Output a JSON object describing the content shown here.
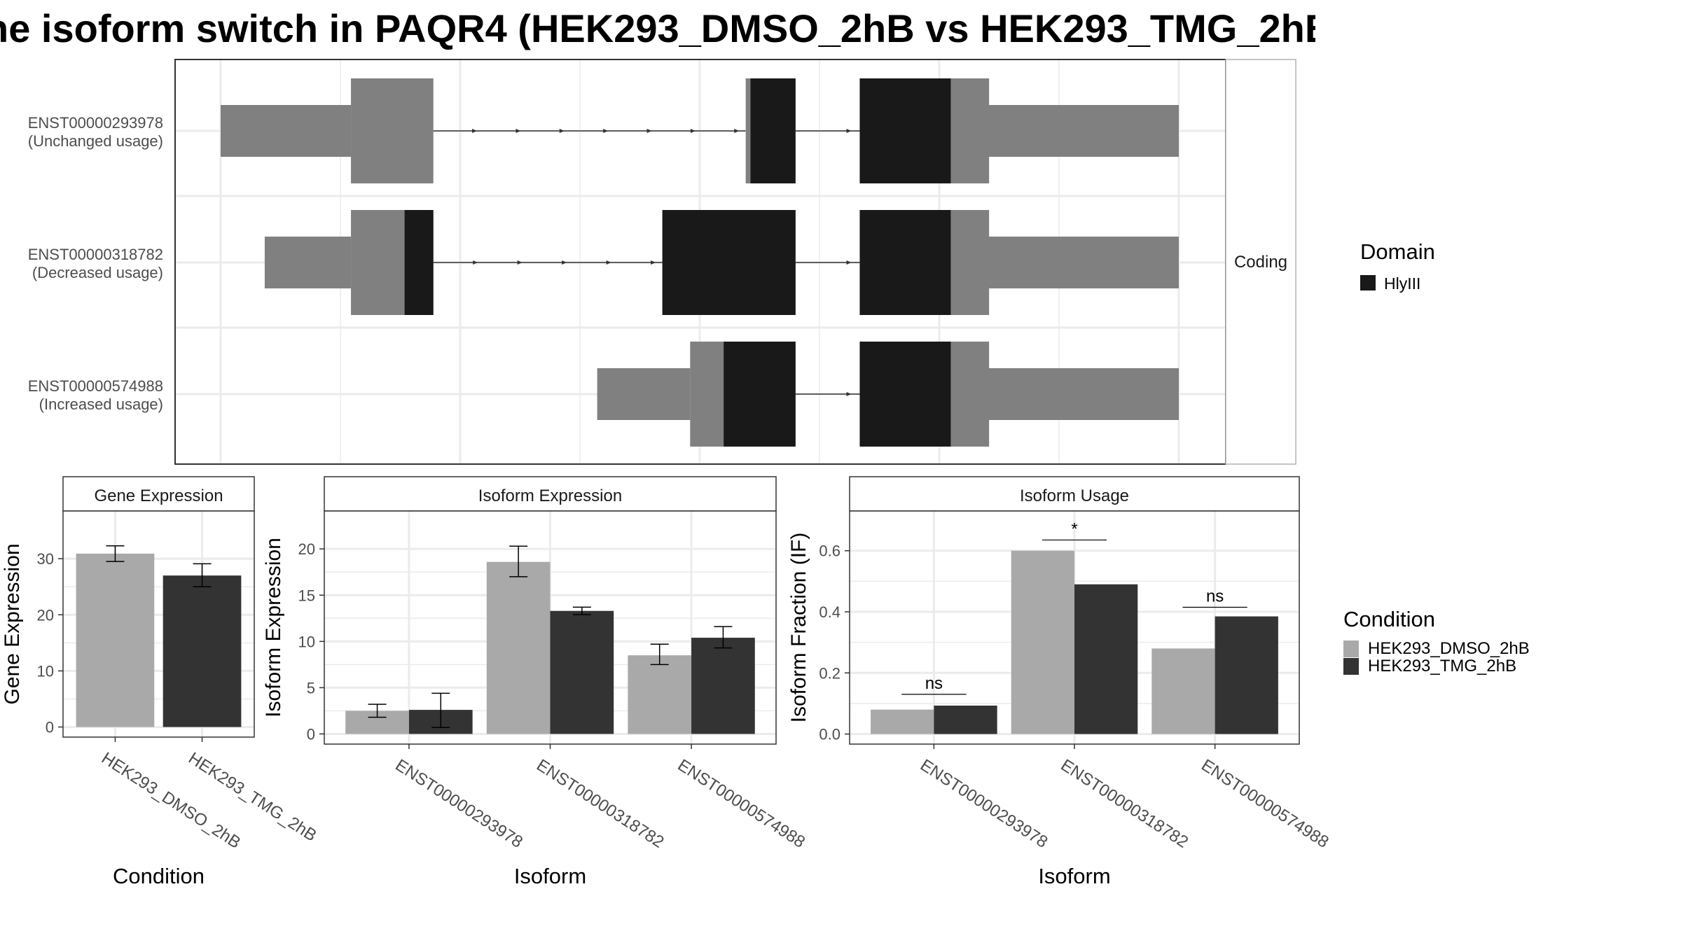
{
  "title": "he isoform switch in PAQR4 (HEK293_DMSO_2hB vs HEK293_TMG_2hB",
  "colors": {
    "dmso": "#A9A9A9",
    "tmg": "#333333",
    "exon_noncoding": "#808080",
    "domain_hlyiii": "#191919",
    "panel_border": "#333333",
    "strip_border": "#B3B3B3",
    "grid": "#EBEBEB"
  },
  "transcript_panel": {
    "facet_label": "Coding",
    "legend_title": "Domain",
    "legend_items": [
      {
        "label": "HlyIII",
        "color": "#191919"
      }
    ],
    "genomic_range": [
      0,
      1000
    ],
    "transcripts": [
      {
        "id": "ENST00000293978",
        "usage_label": "(Unchanged usage)",
        "noncoding": [
          [
            0,
            136
          ],
          [
            762,
            1000
          ]
        ],
        "coding": [
          [
            136,
            222
          ],
          [
            548,
            600
          ],
          [
            667,
            802
          ]
        ],
        "domain": [
          [
            553,
            600
          ],
          [
            667,
            762
          ]
        ],
        "introns": [
          [
            222,
            548
          ],
          [
            600,
            667
          ]
        ]
      },
      {
        "id": "ENST00000318782",
        "usage_label": "(Decreased usage)",
        "noncoding": [
          [
            46,
            136
          ],
          [
            762,
            1000
          ]
        ],
        "coding": [
          [
            136,
            222
          ],
          [
            461,
            600
          ],
          [
            667,
            802
          ]
        ],
        "domain": [
          [
            192,
            222
          ],
          [
            461,
            600
          ],
          [
            667,
            762
          ]
        ],
        "introns": [
          [
            222,
            461
          ],
          [
            600,
            667
          ]
        ]
      },
      {
        "id": "ENST00000574988",
        "usage_label": "(Increased usage)",
        "noncoding": [
          [
            393,
            490
          ],
          [
            762,
            1000
          ]
        ],
        "coding": [
          [
            490,
            600
          ],
          [
            667,
            802
          ]
        ],
        "domain": [
          [
            525,
            600
          ],
          [
            667,
            762
          ]
        ],
        "introns": [
          [
            600,
            667
          ]
        ]
      }
    ]
  },
  "chart_data": [
    {
      "type": "bar",
      "title": "Gene Expression",
      "xlabel": "Condition",
      "ylabel": "Gene Expression",
      "ylim": [
        -1.8,
        38.5
      ],
      "yticks": [
        0,
        10,
        20,
        30
      ],
      "categories": [
        "HEK293_DMSO_2hB",
        "HEK293_TMG_2hB"
      ],
      "series": [
        {
          "values": [
            30.9,
            27.0
          ],
          "errors": [
            [
              29.5,
              32.3
            ],
            [
              25.0,
              29.1
            ]
          ],
          "colors": [
            "#A9A9A9",
            "#333333"
          ]
        }
      ]
    },
    {
      "type": "bar",
      "title": "Isoform Expression",
      "xlabel": "Isoform",
      "ylabel": "Isoform Expression",
      "ylim": [
        -1.1,
        24.1
      ],
      "yticks": [
        0,
        5,
        10,
        15,
        20
      ],
      "categories": [
        "ENST00000293978",
        "ENST00000318782",
        "ENST00000574988"
      ],
      "series": [
        {
          "name": "HEK293_DMSO_2hB",
          "values": [
            2.5,
            18.6,
            8.5
          ],
          "errors": [
            [
              1.8,
              3.2
            ],
            [
              17.0,
              20.3
            ],
            [
              7.5,
              9.7
            ]
          ]
        },
        {
          "name": "HEK293_TMG_2hB",
          "values": [
            2.6,
            13.3,
            10.4
          ],
          "errors": [
            [
              0.7,
              4.4
            ],
            [
              12.9,
              13.7
            ],
            [
              9.3,
              11.6
            ]
          ]
        }
      ]
    },
    {
      "type": "bar",
      "title": "Isoform Usage",
      "xlabel": "Isoform",
      "ylabel": "Isoform Fraction (IF)",
      "ylim": [
        -0.033,
        0.73
      ],
      "yticks": [
        0.0,
        0.2,
        0.4,
        0.6
      ],
      "categories": [
        "ENST00000293978",
        "ENST00000318782",
        "ENST00000574988"
      ],
      "series": [
        {
          "name": "HEK293_DMSO_2hB",
          "values": [
            0.08,
            0.6,
            0.28
          ]
        },
        {
          "name": "HEK293_TMG_2hB",
          "values": [
            0.093,
            0.49,
            0.385
          ]
        }
      ],
      "significance": [
        {
          "label": "ns",
          "y": 0.13
        },
        {
          "label": "*",
          "y": 0.635
        },
        {
          "label": "ns",
          "y": 0.415
        }
      ]
    }
  ],
  "legend": {
    "title": "Condition",
    "items": [
      {
        "label": "HEK293_DMSO_2hB",
        "color": "#A9A9A9"
      },
      {
        "label": "HEK293_TMG_2hB",
        "color": "#333333"
      }
    ]
  }
}
